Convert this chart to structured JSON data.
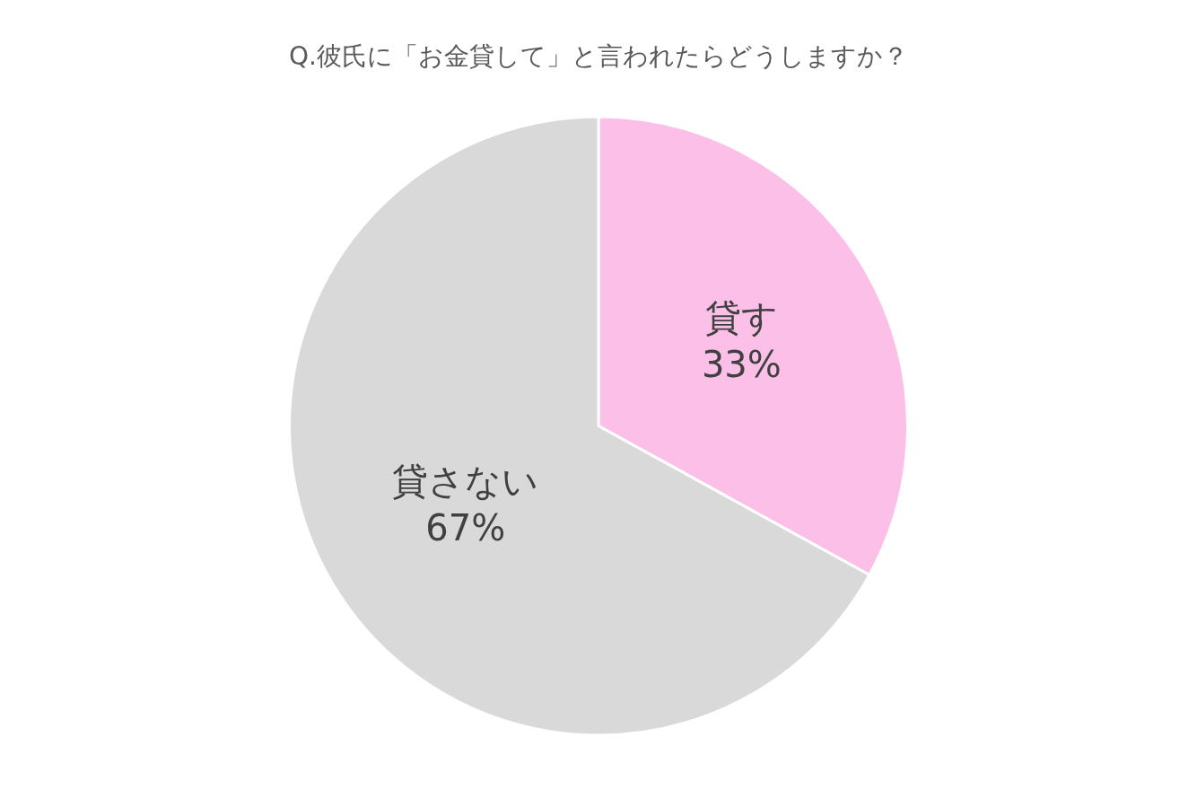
{
  "chart_data": {
    "type": "pie",
    "title": "Q.彼氏に「お金貸して」と言われたらどうしますか？",
    "categories": [
      "貸す",
      "貸さない"
    ],
    "values": [
      33,
      67
    ],
    "value_labels": [
      "33%",
      "67%"
    ],
    "colors": [
      "#fcc0e8",
      "#d9d9d9"
    ],
    "legend": false
  }
}
